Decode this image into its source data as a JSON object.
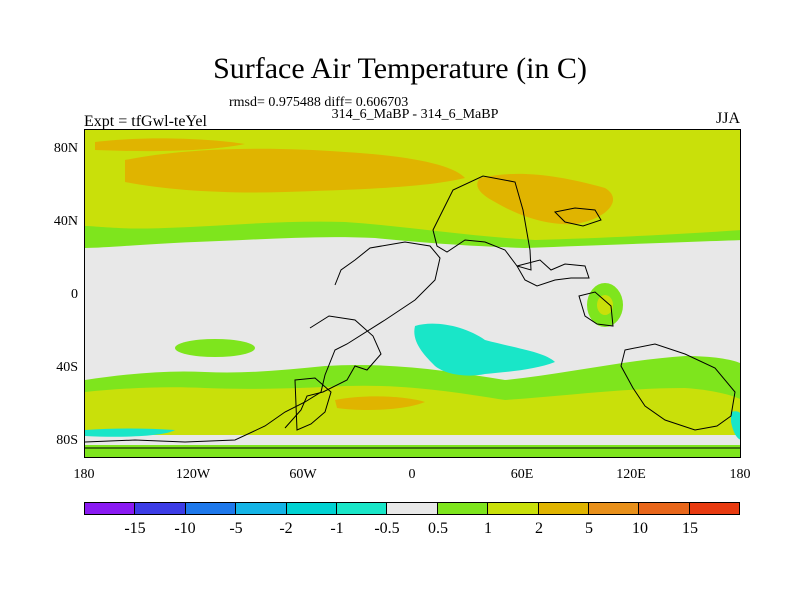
{
  "title": "Surface Air Temperature (in C)",
  "stats": "rmsd= 0.975488 diff= 0.606703",
  "subtitle": "314_6_MaBP - 314_6_MaBP",
  "left_label": "Expt = tfGwl-teYel",
  "right_label": "JJA",
  "map": {
    "y_ticks": [
      "80N",
      "40N",
      "0",
      "40S",
      "80S"
    ],
    "x_ticks": [
      "180",
      "120W",
      "60W",
      "0",
      "60E",
      "120E",
      "180"
    ],
    "background_color": "#e8e8e8",
    "land_outline_color": "#000000"
  },
  "colorbar": {
    "labels": [
      "-15",
      "-10",
      "-5",
      "-2",
      "-1",
      "-0.5",
      "0.5",
      "1",
      "2",
      "5",
      "10",
      "15"
    ],
    "colors": [
      "#8a1af2",
      "#3c3ce6",
      "#1e78eb",
      "#14b4e6",
      "#00d2d2",
      "#19e6c8",
      "#e8e8e8",
      "#7ee51d",
      "#c9e00a",
      "#e0b400",
      "#e8901a",
      "#e8661a",
      "#e83a10"
    ]
  }
}
